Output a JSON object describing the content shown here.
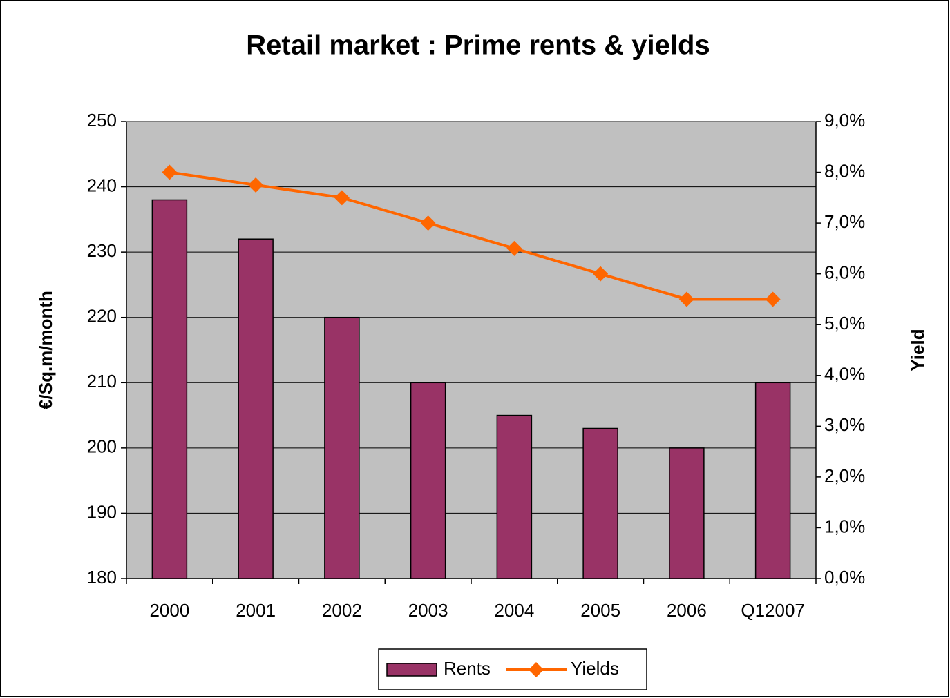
{
  "chart_data": {
    "type": "bar",
    "title": "Retail market : Prime rents & yields",
    "ylabel": "€/Sq.m/month",
    "y2label": "Yield",
    "categories": [
      "2000",
      "2001",
      "2002",
      "2003",
      "2004",
      "2005",
      "2006",
      "Q12007"
    ],
    "series": [
      {
        "name": "Rents",
        "type": "bar",
        "color": "#993366",
        "values": [
          238,
          232,
          220,
          210,
          205,
          203,
          200,
          210
        ]
      },
      {
        "name": "Yields",
        "type": "line",
        "axis": "y2",
        "color": "#ff6600",
        "values": [
          8.0,
          7.75,
          7.5,
          7.0,
          6.5,
          6.0,
          5.5,
          5.5
        ]
      }
    ],
    "ylim": [
      180,
      250
    ],
    "yticks": [
      180,
      190,
      200,
      210,
      220,
      230,
      240,
      250
    ],
    "y2lim": [
      0,
      9
    ],
    "y2ticks": [
      {
        "value": 0,
        "label": "0,0%"
      },
      {
        "value": 1,
        "label": "1,0%"
      },
      {
        "value": 2,
        "label": "2,0%"
      },
      {
        "value": 3,
        "label": "3,0%"
      },
      {
        "value": 4,
        "label": "4,0%"
      },
      {
        "value": 5,
        "label": "5,0%"
      },
      {
        "value": 6,
        "label": "6,0%"
      },
      {
        "value": 7,
        "label": "7,0%"
      },
      {
        "value": 8,
        "label": "8,0%"
      },
      {
        "value": 9,
        "label": "9,0%"
      }
    ],
    "grid": true,
    "plot_background": "#c0c0c0",
    "legend": "bottom"
  }
}
